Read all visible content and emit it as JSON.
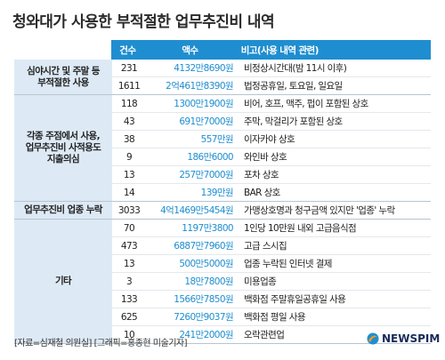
{
  "title": "청와대가 사용한 부적절한 업무추진비 내역",
  "header": {
    "count": "건수",
    "amount": "액수",
    "note": "비고(사용 내역 관련)"
  },
  "groups": [
    {
      "category": "심야시간 및 주말 등\n부적절한 사용",
      "rows": [
        {
          "count": "231",
          "amount": "4132만8690원",
          "note": "비정상시간대(밤 11시 이후)"
        },
        {
          "count": "1611",
          "amount": "2억461만8390원",
          "note": "법정공휴일, 토요일, 일요일"
        }
      ]
    },
    {
      "category": "각종 주점에서 사용,\n업무추진비 사적용도\n지출의심",
      "rows": [
        {
          "count": "118",
          "amount": "1300만1900원",
          "note": "비어, 호프, 맥주, 펍이 포함된 상호"
        },
        {
          "count": "43",
          "amount": "691만7000원",
          "note": "주막, 막걸리가 포함된 상호"
        },
        {
          "count": "38",
          "amount": "557만원",
          "note": "이자카야 상호"
        },
        {
          "count": "9",
          "amount": "186만6000",
          "note": "와인바 상호"
        },
        {
          "count": "13",
          "amount": "257만7000원",
          "note": "포차 상호"
        },
        {
          "count": "14",
          "amount": "139만원",
          "note": "BAR 상호"
        }
      ]
    },
    {
      "category": "업무추진비 업종 누락",
      "rows": [
        {
          "count": "3033",
          "amount": "4억1469만5454원",
          "note": "가맹상호명과 청구금액 있지만 '업종' 누락"
        }
      ]
    },
    {
      "category": "기타",
      "rows": [
        {
          "count": "70",
          "amount": "1197만3800",
          "note": "1인당 10만원 내외 고급음식점"
        },
        {
          "count": "473",
          "amount": "6887만7960원",
          "note": "고급 스시집"
        },
        {
          "count": "13",
          "amount": "500만5000원",
          "note": "업종 누락된 인터넷 결제"
        },
        {
          "count": "3",
          "amount": "18만7800원",
          "note": "미용업종"
        },
        {
          "count": "133",
          "amount": "1566만7850원",
          "note": "백화점 주말휴일공휴일 사용"
        },
        {
          "count": "625",
          "amount": "7260만9037원",
          "note": "백화점 평일 사용"
        },
        {
          "count": "10",
          "amount": "241만2000원",
          "note": "오락관련업"
        }
      ]
    }
  ],
  "source": "[자료=심재철 의원실] [그래픽=홍종현 미술기자]",
  "logo": "NEWSPIM",
  "colors": {
    "header_bg": "#1f8ed0",
    "category_bg": "#ddeaf5",
    "amount_text": "#1f8ed0"
  }
}
